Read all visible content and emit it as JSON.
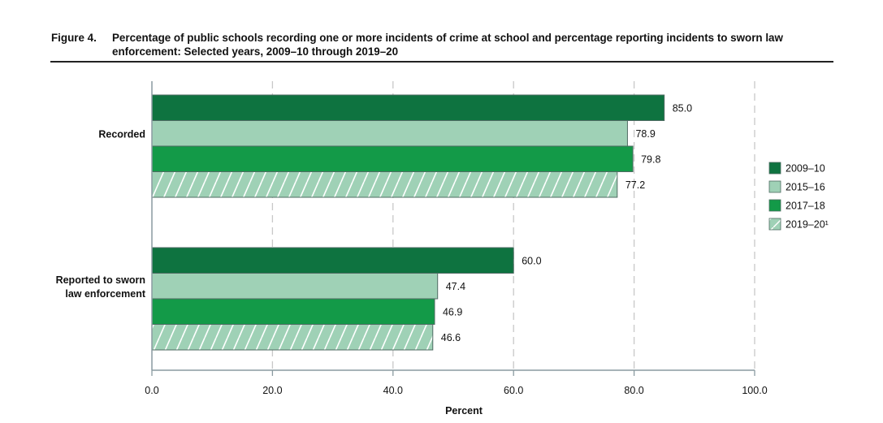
{
  "figure": {
    "number": "Figure 4.",
    "title": "Percentage of public schools recording one or more incidents of crime at school and percentage reporting incidents to sworn law enforcement: Selected years, 2009–10 through 2019–20"
  },
  "colors": {
    "2009–10": "#0e7340",
    "2015–16": "#9fd1b6",
    "2017–18": "#139a48",
    "2019–20": "#9fd1b6",
    "axis": "#8a9aa0",
    "grid": "#c8c8c8"
  },
  "chart_data": {
    "type": "bar",
    "orientation": "horizontal",
    "title": "Percentage of public schools recording one or more incidents of crime at school and percentage reporting incidents to sworn law enforcement: Selected years, 2009–10 through 2019–20",
    "categories": [
      "Recorded",
      "Reported to sworn law enforcement"
    ],
    "category_lines": [
      [
        "Recorded"
      ],
      [
        "Reported to sworn",
        "law enforcement"
      ]
    ],
    "series": [
      {
        "name": "2009–10",
        "legend": "2009–10",
        "values": [
          85.0,
          60.0
        ],
        "pattern": "solid"
      },
      {
        "name": "2015–16",
        "legend": "2015–16",
        "values": [
          78.9,
          47.4
        ],
        "pattern": "solid"
      },
      {
        "name": "2017–18",
        "legend": "2017–18",
        "values": [
          79.8,
          46.9
        ],
        "pattern": "solid"
      },
      {
        "name": "2019–20",
        "legend": "2019–20¹",
        "values": [
          77.2,
          46.6
        ],
        "pattern": "hatched"
      }
    ],
    "data_labels": [
      [
        "85.0",
        "60.0"
      ],
      [
        "78.9",
        "47.4"
      ],
      [
        "79.8",
        "46.9"
      ],
      [
        "77.2",
        "46.6"
      ]
    ],
    "xlabel": "Percent",
    "ylabel": "",
    "xlim": [
      0,
      100
    ],
    "xticks": [
      0,
      20,
      40,
      60,
      80,
      100
    ],
    "xtick_labels": [
      "0.0",
      "20.0",
      "40.0",
      "60.0",
      "80.0",
      "100.0"
    ],
    "grid": "vertical dashed",
    "legend_position": "right"
  }
}
